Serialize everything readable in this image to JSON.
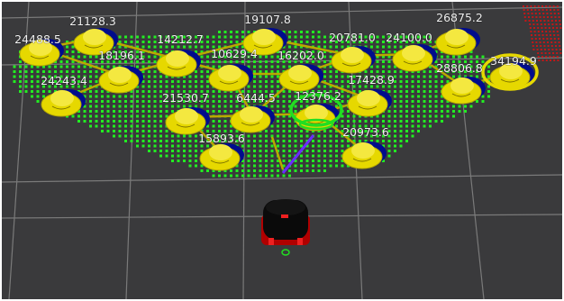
{
  "viewport": {
    "name": "3d-render-view",
    "background": "#3a3a3c",
    "grid_color": "#7a7a7a",
    "cell_color": "#22ee22",
    "node_body_color": "#e6d800",
    "node_base_color": "#000c8c",
    "edge_color": "#b9a800",
    "selected_ring_color": "#22dd22",
    "goal_ring_color": "#e6d800",
    "heading_arrow_color": "#6a2cff",
    "obstacle_color": "#dd1010"
  },
  "nodes": [
    {
      "label": "24488.5"
    },
    {
      "label": "21128.3"
    },
    {
      "label": "19107.8"
    },
    {
      "label": "20781.0"
    },
    {
      "label": "24100.0"
    },
    {
      "label": "26875.2"
    },
    {
      "label": "18196.1"
    },
    {
      "label": "14212.7"
    },
    {
      "label": "10629.4"
    },
    {
      "label": "16202.0"
    },
    {
      "label": "28806.8"
    },
    {
      "label": "34194.9"
    },
    {
      "label": "24243.4"
    },
    {
      "label": "21530.7"
    },
    {
      "label": "6444.5"
    },
    {
      "label": "12376.2"
    },
    {
      "label": "17428.9"
    },
    {
      "label": "20973.6"
    },
    {
      "label": "15893.6"
    }
  ]
}
